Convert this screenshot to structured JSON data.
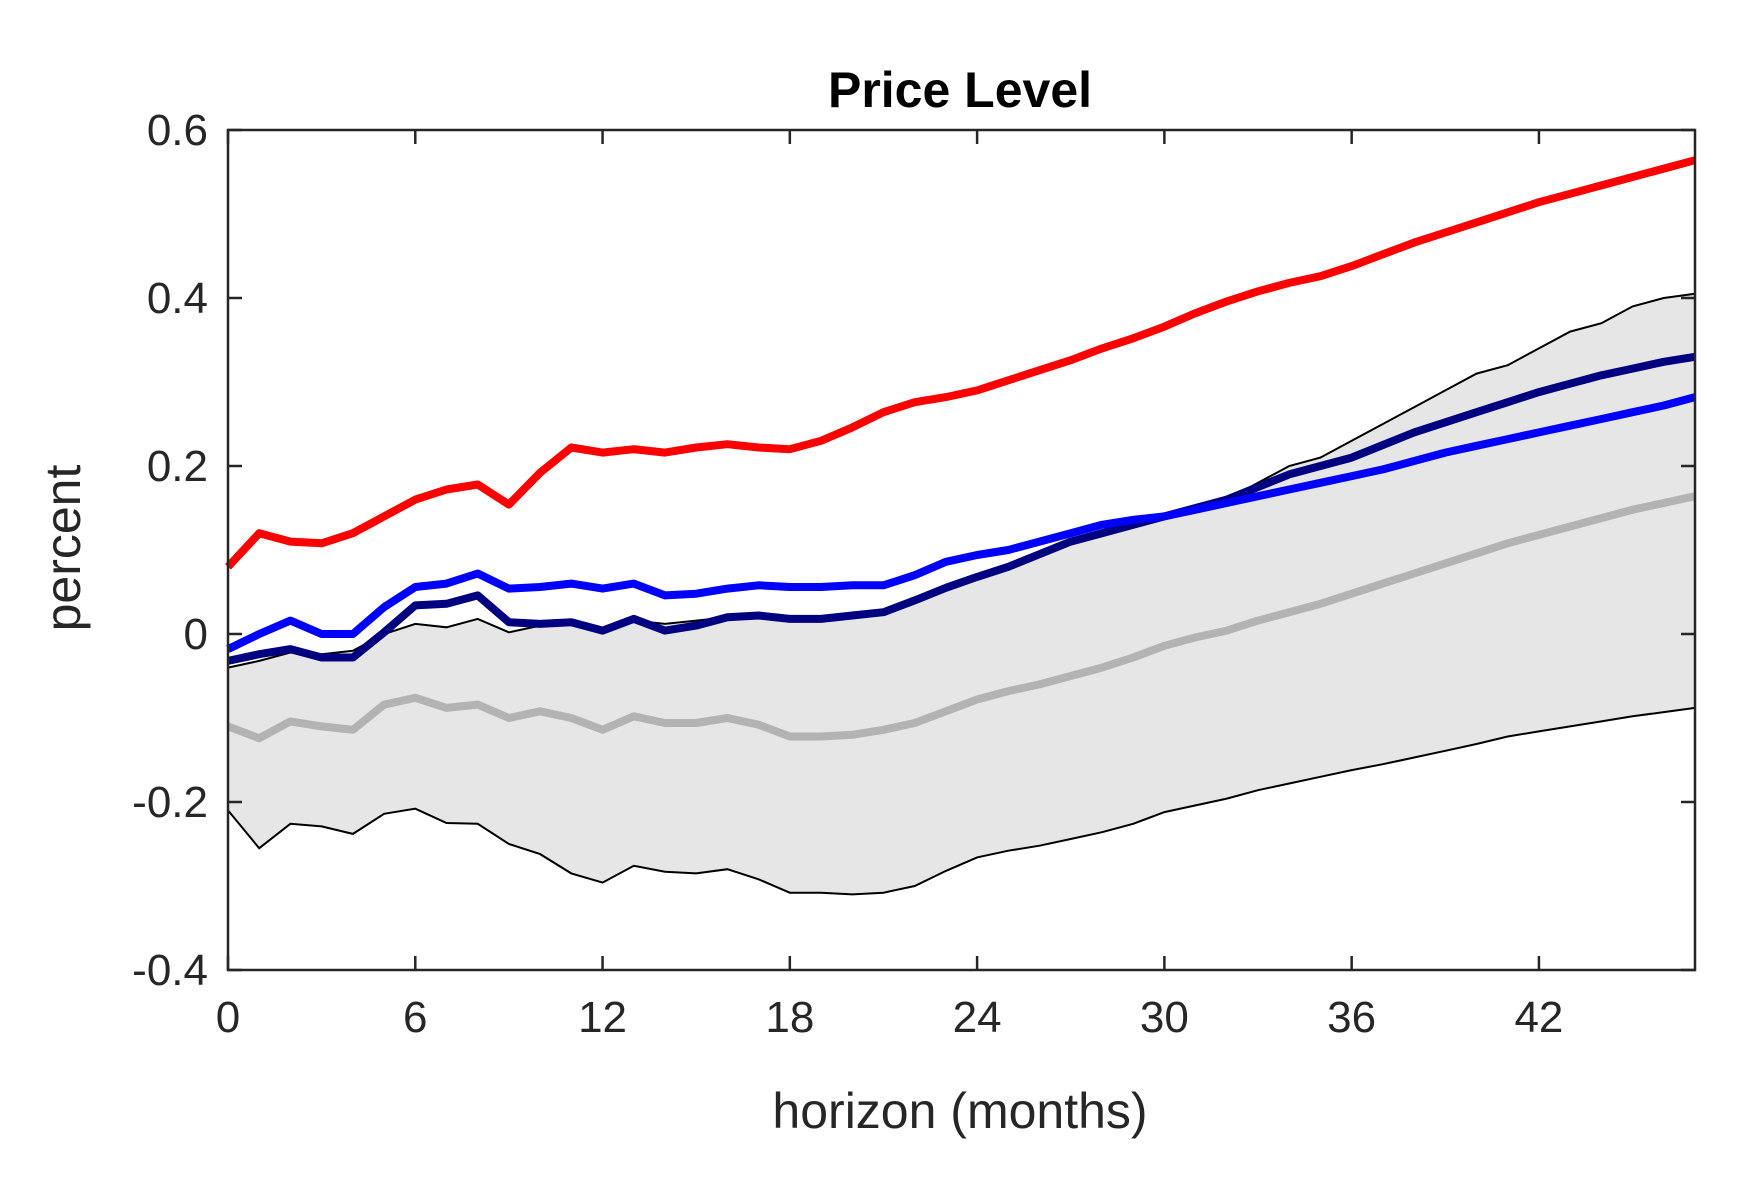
{
  "chart_data": {
    "type": "line",
    "title": "Price Level",
    "xlabel": "horizon (months)",
    "ylabel": "percent",
    "xlim": [
      0,
      47
    ],
    "ylim": [
      -0.4,
      0.6
    ],
    "xticks": [
      0,
      6,
      12,
      18,
      24,
      30,
      36,
      42
    ],
    "xtick_labels": [
      "0",
      "6",
      "12",
      "18",
      "24",
      "30",
      "36",
      "42"
    ],
    "yticks": [
      -0.4,
      -0.2,
      0,
      0.2,
      0.4,
      0.6
    ],
    "ytick_labels": [
      "-0.4",
      "-0.2",
      "0",
      "0.2",
      "0.4",
      "0.6"
    ],
    "grid": false,
    "legend": "none",
    "x": [
      0,
      1,
      2,
      3,
      4,
      5,
      6,
      7,
      8,
      9,
      10,
      11,
      12,
      13,
      14,
      15,
      16,
      17,
      18,
      19,
      20,
      21,
      22,
      23,
      24,
      25,
      26,
      27,
      28,
      29,
      30,
      31,
      32,
      33,
      34,
      35,
      36,
      37,
      38,
      39,
      40,
      41,
      42,
      43,
      44,
      45,
      46,
      47
    ],
    "band": {
      "color": "#e6e6e6",
      "edge_color": "#000000",
      "upper": [
        -0.04,
        -0.032,
        -0.022,
        -0.024,
        -0.02,
        0.0,
        0.012,
        0.008,
        0.018,
        0.002,
        0.01,
        0.014,
        0.004,
        0.016,
        0.012,
        0.016,
        0.02,
        0.02,
        0.016,
        0.018,
        0.022,
        0.026,
        0.04,
        0.055,
        0.068,
        0.08,
        0.095,
        0.11,
        0.12,
        0.13,
        0.14,
        0.15,
        0.16,
        0.18,
        0.2,
        0.21,
        0.23,
        0.25,
        0.27,
        0.29,
        0.31,
        0.32,
        0.34,
        0.36,
        0.37,
        0.39,
        0.4,
        0.405
      ],
      "lower": [
        -0.21,
        -0.255,
        -0.226,
        -0.229,
        -0.238,
        -0.214,
        -0.208,
        -0.225,
        -0.226,
        -0.25,
        -0.262,
        -0.285,
        -0.296,
        -0.276,
        -0.283,
        -0.285,
        -0.28,
        -0.292,
        -0.308,
        -0.308,
        -0.31,
        -0.308,
        -0.3,
        -0.282,
        -0.266,
        -0.258,
        -0.252,
        -0.244,
        -0.236,
        -0.226,
        -0.212,
        -0.204,
        -0.196,
        -0.186,
        -0.178,
        -0.17,
        -0.162,
        -0.155,
        -0.147,
        -0.139,
        -0.131,
        -0.122,
        -0.116,
        -0.11,
        -0.104,
        -0.098,
        -0.093,
        -0.088
      ]
    },
    "series": [
      {
        "color": "#b3b3b3",
        "values": [
          -0.11,
          -0.124,
          -0.104,
          -0.11,
          -0.114,
          -0.084,
          -0.076,
          -0.088,
          -0.084,
          -0.1,
          -0.092,
          -0.1,
          -0.114,
          -0.098,
          -0.106,
          -0.106,
          -0.1,
          -0.108,
          -0.122,
          -0.122,
          -0.12,
          -0.114,
          -0.106,
          -0.092,
          -0.078,
          -0.068,
          -0.06,
          -0.05,
          -0.04,
          -0.028,
          -0.014,
          -0.004,
          0.004,
          0.016,
          0.026,
          0.036,
          0.048,
          0.06,
          0.072,
          0.084,
          0.096,
          0.108,
          0.118,
          0.128,
          0.138,
          0.148,
          0.156,
          0.164
        ]
      },
      {
        "color": "#000080",
        "values": [
          -0.032,
          -0.024,
          -0.018,
          -0.028,
          -0.028,
          0.002,
          0.034,
          0.036,
          0.046,
          0.014,
          0.012,
          0.014,
          0.004,
          0.018,
          0.004,
          0.01,
          0.02,
          0.022,
          0.018,
          0.018,
          0.022,
          0.026,
          0.04,
          0.055,
          0.068,
          0.08,
          0.095,
          0.11,
          0.12,
          0.13,
          0.14,
          0.15,
          0.16,
          0.175,
          0.19,
          0.2,
          0.21,
          0.225,
          0.24,
          0.252,
          0.264,
          0.276,
          0.288,
          0.298,
          0.308,
          0.316,
          0.324,
          0.33
        ]
      },
      {
        "color": "#0000ff",
        "values": [
          -0.018,
          0.0,
          0.016,
          0.0,
          0.0,
          0.032,
          0.056,
          0.06,
          0.072,
          0.054,
          0.056,
          0.06,
          0.054,
          0.06,
          0.046,
          0.048,
          0.054,
          0.058,
          0.056,
          0.056,
          0.058,
          0.058,
          0.07,
          0.086,
          0.094,
          0.1,
          0.11,
          0.12,
          0.13,
          0.136,
          0.14,
          0.148,
          0.156,
          0.164,
          0.172,
          0.18,
          0.188,
          0.196,
          0.206,
          0.216,
          0.224,
          0.232,
          0.24,
          0.248,
          0.256,
          0.264,
          0.272,
          0.282
        ]
      },
      {
        "color": "#ff0000",
        "values": [
          0.08,
          0.12,
          0.11,
          0.108,
          0.12,
          0.14,
          0.16,
          0.172,
          0.178,
          0.154,
          0.192,
          0.222,
          0.216,
          0.22,
          0.216,
          0.222,
          0.226,
          0.222,
          0.22,
          0.23,
          0.246,
          0.264,
          0.276,
          0.282,
          0.29,
          0.302,
          0.314,
          0.326,
          0.34,
          0.352,
          0.366,
          0.382,
          0.396,
          0.408,
          0.418,
          0.426,
          0.438,
          0.452,
          0.466,
          0.478,
          0.49,
          0.502,
          0.514,
          0.524,
          0.534,
          0.544,
          0.554,
          0.564
        ]
      }
    ]
  }
}
